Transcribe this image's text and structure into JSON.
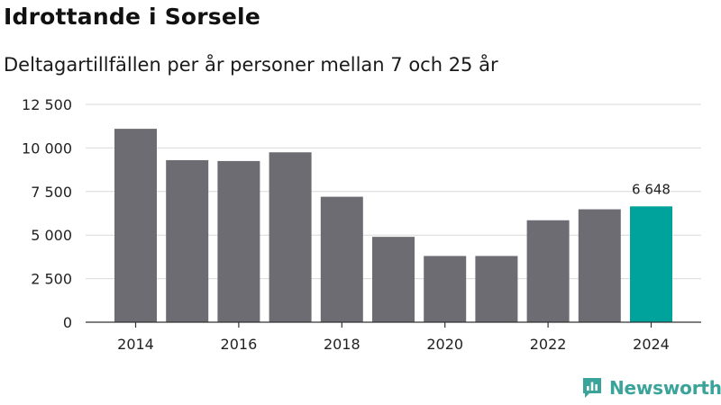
{
  "title": "Idrottande i Sorsele",
  "subtitle": "Deltagartillfällen per år personer mellan 7 och 25 år",
  "brand": {
    "name": "Newsworthy",
    "color": "#3aa39a"
  },
  "colors": {
    "bar": "#6d6c72",
    "highlight": "#00a39b",
    "grid": "#d9d9d9",
    "axis": "#333333"
  },
  "chart_data": {
    "type": "bar",
    "x": [
      2014,
      2015,
      2016,
      2017,
      2018,
      2019,
      2020,
      2021,
      2022,
      2023,
      2024
    ],
    "values": [
      11100,
      9300,
      9250,
      9750,
      7200,
      4900,
      3800,
      3800,
      5850,
      6480,
      6648
    ],
    "x_tick_labels": [
      "2014",
      "2016",
      "2018",
      "2020",
      "2022",
      "2024"
    ],
    "y_ticks": [
      0,
      2500,
      5000,
      7500,
      10000,
      12500
    ],
    "y_tick_labels": [
      "0",
      "2 500",
      "5 000",
      "7 500",
      "10 000",
      "12 500"
    ],
    "ylim": [
      0,
      12500
    ],
    "highlight_index": 10,
    "highlight_label": "6 648",
    "grid": true
  }
}
